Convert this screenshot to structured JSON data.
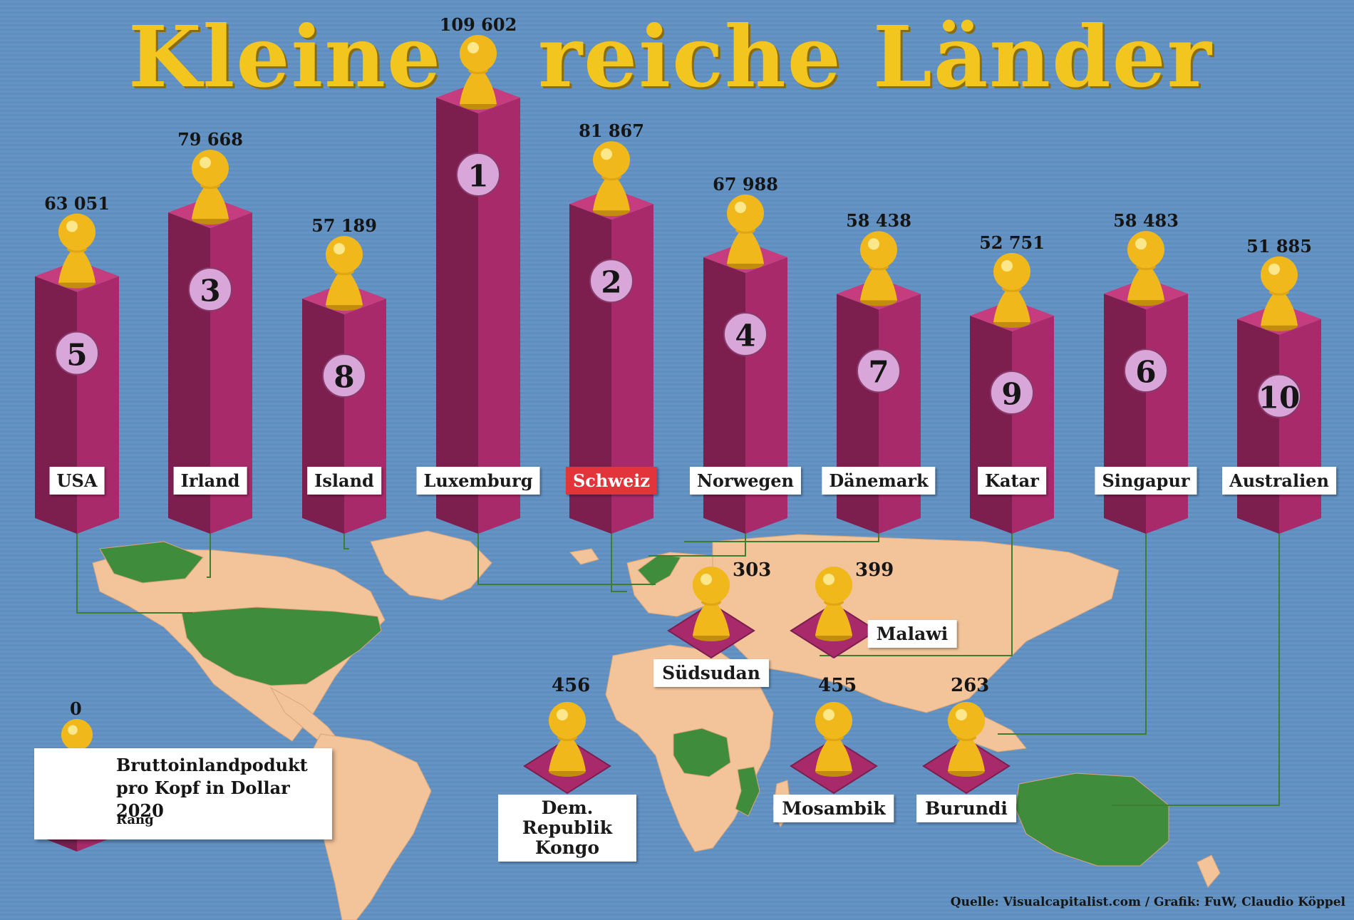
{
  "title": {
    "part1": "Kleine",
    "part2": "reiche Länder"
  },
  "colors": {
    "pillar_front": "#a92a6a",
    "pillar_side": "#7c1f4f",
    "pillar_top": "#c53d7f",
    "pawn": "#f0b81a",
    "rank_circle": "#d9a6d9",
    "land": "#f3c39a",
    "land_highlight": "#3f8d3c",
    "ocean": "#6594c4",
    "title": "#f3c51f"
  },
  "chart_data": {
    "type": "bar",
    "title": "Kleine reiche Länder",
    "value_label": "Bruttoinlandpodukt pro Kopf in Dollar 2020",
    "categories": [
      "USA",
      "Irland",
      "Island",
      "Luxemburg",
      "Schweiz",
      "Norwegen",
      "Dänemark",
      "Katar",
      "Singapur",
      "Australien"
    ],
    "values": [
      63051,
      79668,
      57189,
      109602,
      81867,
      67988,
      58438,
      52751,
      58483,
      51885
    ],
    "value_labels": [
      "63 051",
      "79 668",
      "57 189",
      "109 602",
      "81 867",
      "67 988",
      "58 438",
      "52 751",
      "58 483",
      "51 885"
    ],
    "ranks": [
      "5",
      "3",
      "8",
      "1",
      "2",
      "4",
      "7",
      "9",
      "6",
      "10"
    ],
    "highlight": "Schweiz",
    "low_income": [
      {
        "name": "Südsudan",
        "value": 303,
        "value_label": "303"
      },
      {
        "name": "Malawi",
        "value": 399,
        "value_label": "399"
      },
      {
        "name": "Dem. Republik Kongo",
        "value": 456,
        "value_label": "456"
      },
      {
        "name": "Mosambik",
        "value": 455,
        "value_label": "455"
      },
      {
        "name": "Burundi",
        "value": 263,
        "value_label": "263"
      }
    ]
  },
  "legend": {
    "zero_label": "0",
    "title": "Bruttoinlandpodukt\npro Kopf in Dollar 2020",
    "rank_label": "Rang"
  },
  "source": "Quelle: Visualcapitalist.com / Grafik: FuW, Claudio Köppel"
}
